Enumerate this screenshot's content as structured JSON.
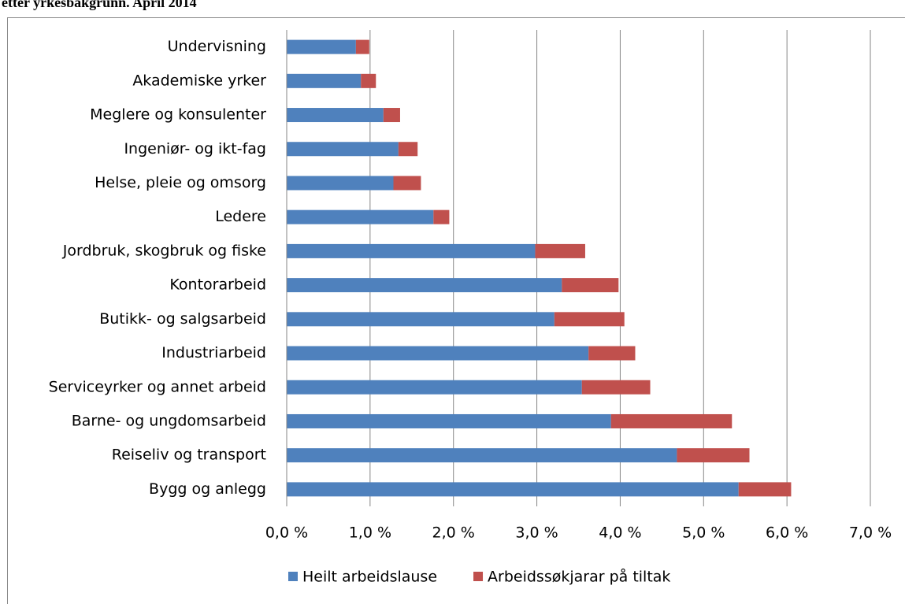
{
  "chart_data": {
    "type": "stacked-barh",
    "title": "etter yrkesbakgrunn. April 2014",
    "categories": [
      "Undervisning",
      "Akademiske yrker",
      "Meglere og konsulenter",
      "Ingeniør- og ikt-fag",
      "Helse, pleie og omsorg",
      "Ledere",
      "Jordbruk, skogbruk og fiske",
      "Kontorarbeid",
      "Butikk- og salgsarbeid",
      "Industriarbeid",
      "Serviceyrker og annet arbeid",
      "Barne- og ungdomsarbeid",
      "Reiseliv og transport",
      "Bygg og anlegg"
    ],
    "series": [
      {
        "name": "Heilt arbeidslause",
        "color": "#4f81bd",
        "values": [
          0.83,
          0.89,
          1.16,
          1.34,
          1.28,
          1.76,
          2.98,
          3.3,
          3.21,
          3.62,
          3.54,
          3.89,
          4.68,
          5.42
        ]
      },
      {
        "name": "Arbeidssøkjarar på tiltak",
        "color": "#c0504d",
        "values": [
          0.16,
          0.18,
          0.2,
          0.23,
          0.33,
          0.19,
          0.6,
          0.68,
          0.84,
          0.56,
          0.82,
          1.45,
          0.87,
          0.63
        ]
      }
    ],
    "xlim": [
      0,
      7
    ],
    "xticks": [
      {
        "value": 0,
        "label": "0,0 %"
      },
      {
        "value": 1,
        "label": "1,0 %"
      },
      {
        "value": 2,
        "label": "2,0 %"
      },
      {
        "value": 3,
        "label": "3,0 %"
      },
      {
        "value": 4,
        "label": "4,0 %"
      },
      {
        "value": 5,
        "label": "5,0 %"
      },
      {
        "value": 6,
        "label": "6,0 %"
      },
      {
        "value": 7,
        "label": "7,0 %"
      }
    ],
    "grid": true,
    "legend": "bottom"
  }
}
